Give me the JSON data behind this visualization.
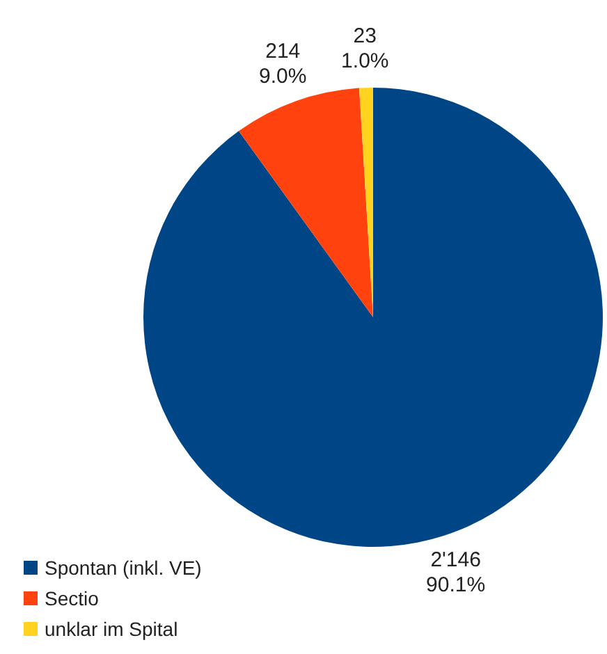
{
  "chart_data": {
    "type": "pie",
    "categories": [
      "Spontan (inkl. VE)",
      "Sectio",
      "unklar im Spital"
    ],
    "values": [
      2146,
      214,
      23
    ],
    "colors": [
      "#004586",
      "#ff420e",
      "#ffd320"
    ],
    "value_labels": [
      "2'146\n90.1%",
      "214\n9.0%",
      "23\n1.0%"
    ],
    "legend": "bottom left"
  }
}
